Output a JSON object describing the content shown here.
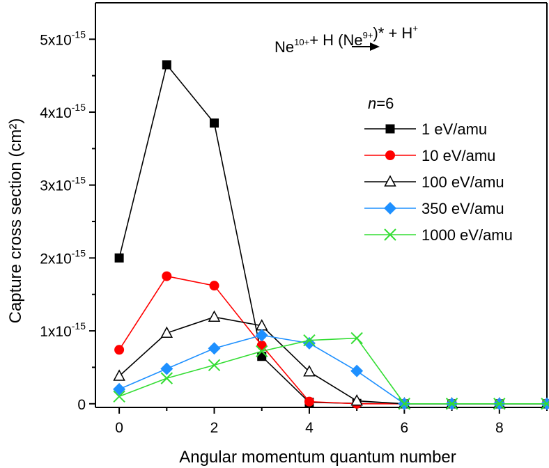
{
  "chart_data": {
    "type": "line",
    "xlabel": "Angular momentum quantum number",
    "ylabel": "Capture cross section (cm²)",
    "xlim": [
      -0.5,
      9
    ],
    "ylim": [
      -5e-17,
      5.5e-15
    ],
    "x_ticks": [
      0,
      2,
      4,
      6,
      8
    ],
    "y_ticks": [
      0,
      1e-15,
      2e-15,
      3e-15,
      4e-15,
      5e-15
    ],
    "y_tick_labels": [
      {
        "value": 0,
        "base": "0",
        "exp": ""
      },
      {
        "value": 1e-15,
        "base": "1x10",
        "exp": "-15"
      },
      {
        "value": 2e-15,
        "base": "2x10",
        "exp": "-15"
      },
      {
        "value": 3e-15,
        "base": "3x10",
        "exp": "-15"
      },
      {
        "value": 4e-15,
        "base": "4x10",
        "exp": "-15"
      },
      {
        "value": 5e-15,
        "base": "5x10",
        "exp": "-15"
      }
    ],
    "annotation": {
      "reaction": [
        {
          "text": "Ne",
          "sup": "10+"
        },
        {
          "text": "+ H",
          "sup": ""
        },
        {
          "text": "(Ne",
          "sup": "9+"
        },
        {
          "text": ")*",
          "sup": ""
        },
        {
          "text": "+ H",
          "sup": "+"
        }
      ],
      "subset_italic": "n",
      "subset_rest": "=6"
    },
    "grid": false,
    "legend_position": "top-right",
    "x": [
      0,
      1,
      2,
      3,
      4,
      5,
      6,
      7,
      8,
      9
    ],
    "series": [
      {
        "name": "1 eV/amu",
        "color": "#000000",
        "marker": "square",
        "values": [
          2e-15,
          4.65e-15,
          3.85e-15,
          6.5e-16,
          2e-17,
          5e-18,
          0.0,
          0.0,
          0.0,
          0.0
        ]
      },
      {
        "name": "10 eV/amu",
        "color": "#ff0000",
        "marker": "circle",
        "values": [
          7.4e-16,
          1.75e-15,
          1.62e-15,
          8e-16,
          3e-17,
          0.0,
          0.0,
          0.0,
          0.0,
          0.0
        ]
      },
      {
        "name": "100 eV/amu",
        "color": "#000000",
        "marker": "triangle",
        "values": [
          3.8e-16,
          9.7e-16,
          1.19e-15,
          1.07e-15,
          4.4e-16,
          4e-17,
          0.0,
          0.0,
          0.0,
          0.0
        ]
      },
      {
        "name": "350 eV/amu",
        "color": "#1e90ff",
        "marker": "diamond",
        "values": [
          2e-16,
          4.8e-16,
          7.6e-16,
          9.4e-16,
          8.3e-16,
          4.5e-16,
          0.0,
          0.0,
          0.0,
          0.0
        ]
      },
      {
        "name": "1000 eV/amu",
        "color": "#33dd33",
        "marker": "x",
        "values": [
          1e-16,
          3.5e-16,
          5.3e-16,
          7.2e-16,
          8.7e-16,
          9e-16,
          0.0,
          0.0,
          0.0,
          0.0
        ]
      }
    ]
  }
}
